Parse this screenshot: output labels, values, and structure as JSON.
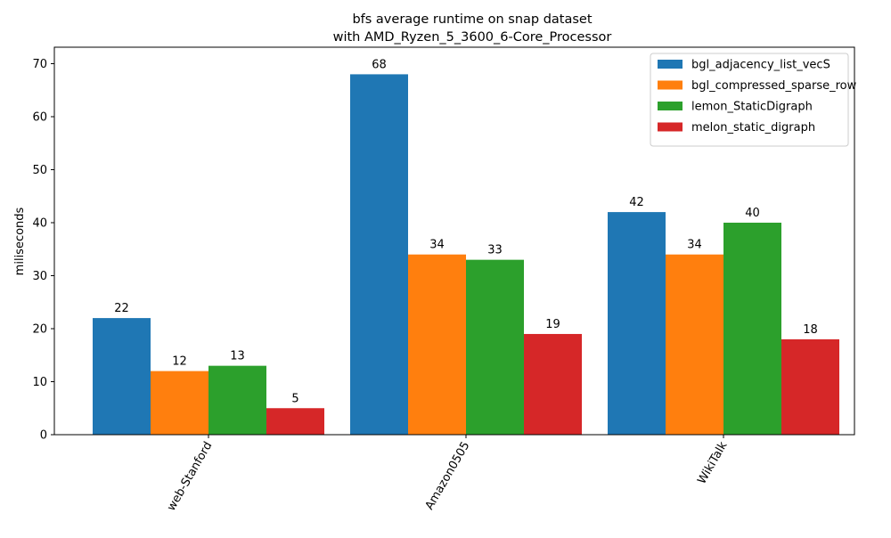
{
  "chart_data": {
    "type": "bar",
    "title_line1": "bfs average runtime on snap dataset",
    "title_line2": "with AMD_Ryzen_5_3600_6-Core_Processor",
    "xlabel": "",
    "ylabel": "miliseconds",
    "ylim": [
      0,
      70
    ],
    "yticks": [
      "0",
      "10",
      "20",
      "30",
      "40",
      "50",
      "60",
      "70"
    ],
    "categories": [
      "web-Stanford",
      "Amazon0505",
      "WikiTalk"
    ],
    "series": [
      {
        "name": "bgl_adjacency_list_vecS",
        "color": "#1f77b4",
        "values": [
          22,
          68,
          42
        ]
      },
      {
        "name": "bgl_compressed_sparse_row",
        "color": "#ff7f0e",
        "values": [
          12,
          34,
          34
        ]
      },
      {
        "name": "lemon_StaticDigraph",
        "color": "#2ca02c",
        "values": [
          13,
          33,
          40
        ]
      },
      {
        "name": "melon_static_digraph",
        "color": "#d62728",
        "values": [
          5,
          19,
          18
        ]
      }
    ],
    "legend_position": "top-right",
    "grid": false,
    "xtick_rotation": -60
  }
}
